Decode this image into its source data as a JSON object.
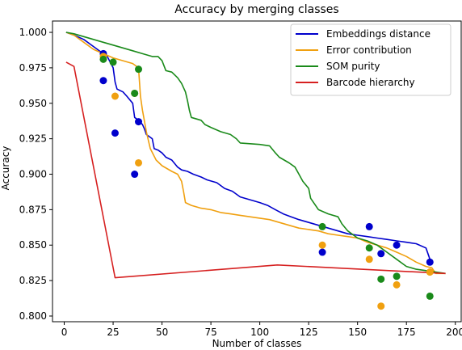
{
  "chart_data": {
    "type": "line",
    "title": "Accuracy by merging classes",
    "xlabel": "Number of classes",
    "ylabel": "Accuracy",
    "xlim": [
      -6,
      203
    ],
    "ylim": [
      0.796,
      1.008
    ],
    "xticks": [
      0,
      25,
      50,
      75,
      100,
      125,
      150,
      175,
      200
    ],
    "xtick_labels": [
      "0",
      "25",
      "50",
      "75",
      "100",
      "125",
      "150",
      "175",
      "200"
    ],
    "yticks": [
      0.8,
      0.825,
      0.85,
      0.875,
      0.9,
      0.925,
      0.95,
      0.975,
      1.0
    ],
    "ytick_labels": [
      "0.800",
      "0.825",
      "0.850",
      "0.875",
      "0.900",
      "0.925",
      "0.950",
      "0.975",
      "1.000"
    ],
    "grid": false,
    "legend_position": "top-right",
    "series": [
      {
        "name": "Embeddings distance",
        "color": "#0000cc",
        "points": [
          [
            1,
            1.0
          ],
          [
            5,
            0.998
          ],
          [
            10,
            0.995
          ],
          [
            15,
            0.99
          ],
          [
            20,
            0.985
          ],
          [
            22,
            0.983
          ],
          [
            25,
            0.975
          ],
          [
            26,
            0.965
          ],
          [
            27,
            0.96
          ],
          [
            30,
            0.958
          ],
          [
            32,
            0.955
          ],
          [
            35,
            0.95
          ],
          [
            36,
            0.94
          ],
          [
            38,
            0.938
          ],
          [
            40,
            0.935
          ],
          [
            41,
            0.932
          ],
          [
            42,
            0.928
          ],
          [
            45,
            0.925
          ],
          [
            46,
            0.918
          ],
          [
            48,
            0.917
          ],
          [
            50,
            0.915
          ],
          [
            52,
            0.912
          ],
          [
            55,
            0.91
          ],
          [
            58,
            0.905
          ],
          [
            60,
            0.903
          ],
          [
            63,
            0.902
          ],
          [
            66,
            0.9
          ],
          [
            70,
            0.898
          ],
          [
            73,
            0.896
          ],
          [
            78,
            0.894
          ],
          [
            82,
            0.89
          ],
          [
            86,
            0.888
          ],
          [
            90,
            0.884
          ],
          [
            95,
            0.882
          ],
          [
            100,
            0.88
          ],
          [
            104,
            0.878
          ],
          [
            108,
            0.875
          ],
          [
            112,
            0.872
          ],
          [
            116,
            0.87
          ],
          [
            120,
            0.868
          ],
          [
            125,
            0.866
          ],
          [
            130,
            0.864
          ],
          [
            135,
            0.862
          ],
          [
            140,
            0.86
          ],
          [
            145,
            0.858
          ],
          [
            150,
            0.857
          ],
          [
            155,
            0.856
          ],
          [
            160,
            0.855
          ],
          [
            165,
            0.854
          ],
          [
            170,
            0.853
          ],
          [
            175,
            0.852
          ],
          [
            180,
            0.851
          ],
          [
            185,
            0.848
          ],
          [
            187,
            0.84
          ]
        ]
      },
      {
        "name": "Error contribution",
        "color": "#f0a010",
        "points": [
          [
            1,
            1.0
          ],
          [
            5,
            0.998
          ],
          [
            10,
            0.993
          ],
          [
            15,
            0.988
          ],
          [
            20,
            0.985
          ],
          [
            25,
            0.982
          ],
          [
            30,
            0.98
          ],
          [
            35,
            0.978
          ],
          [
            38,
            0.975
          ],
          [
            39,
            0.955
          ],
          [
            40,
            0.945
          ],
          [
            42,
            0.93
          ],
          [
            44,
            0.918
          ],
          [
            47,
            0.91
          ],
          [
            50,
            0.906
          ],
          [
            55,
            0.902
          ],
          [
            58,
            0.9
          ],
          [
            60,
            0.895
          ],
          [
            61,
            0.888
          ],
          [
            62,
            0.88
          ],
          [
            65,
            0.878
          ],
          [
            70,
            0.876
          ],
          [
            75,
            0.875
          ],
          [
            80,
            0.873
          ],
          [
            85,
            0.872
          ],
          [
            90,
            0.871
          ],
          [
            95,
            0.87
          ],
          [
            100,
            0.869
          ],
          [
            105,
            0.868
          ],
          [
            110,
            0.866
          ],
          [
            115,
            0.864
          ],
          [
            120,
            0.862
          ],
          [
            125,
            0.861
          ],
          [
            130,
            0.86
          ],
          [
            135,
            0.858
          ],
          [
            140,
            0.857
          ],
          [
            145,
            0.856
          ],
          [
            150,
            0.855
          ],
          [
            155,
            0.852
          ],
          [
            160,
            0.85
          ],
          [
            165,
            0.848
          ],
          [
            170,
            0.845
          ],
          [
            175,
            0.842
          ],
          [
            180,
            0.838
          ],
          [
            185,
            0.835
          ],
          [
            188,
            0.834
          ],
          [
            190,
            0.83
          ],
          [
            195,
            0.83
          ]
        ]
      },
      {
        "name": "SOM purity",
        "color": "#1a8a1a",
        "points": [
          [
            1,
            1.0
          ],
          [
            5,
            0.999
          ],
          [
            10,
            0.997
          ],
          [
            15,
            0.995
          ],
          [
            20,
            0.993
          ],
          [
            25,
            0.991
          ],
          [
            30,
            0.989
          ],
          [
            35,
            0.987
          ],
          [
            40,
            0.985
          ],
          [
            45,
            0.983
          ],
          [
            48,
            0.983
          ],
          [
            50,
            0.98
          ],
          [
            52,
            0.973
          ],
          [
            55,
            0.972
          ],
          [
            58,
            0.968
          ],
          [
            60,
            0.964
          ],
          [
            62,
            0.958
          ],
          [
            63,
            0.952
          ],
          [
            64,
            0.945
          ],
          [
            65,
            0.94
          ],
          [
            70,
            0.938
          ],
          [
            72,
            0.935
          ],
          [
            75,
            0.933
          ],
          [
            80,
            0.93
          ],
          [
            85,
            0.928
          ],
          [
            88,
            0.925
          ],
          [
            90,
            0.922
          ],
          [
            100,
            0.921
          ],
          [
            105,
            0.92
          ],
          [
            108,
            0.915
          ],
          [
            110,
            0.912
          ],
          [
            115,
            0.908
          ],
          [
            118,
            0.905
          ],
          [
            120,
            0.9
          ],
          [
            122,
            0.895
          ],
          [
            125,
            0.89
          ],
          [
            126,
            0.883
          ],
          [
            130,
            0.875
          ],
          [
            135,
            0.872
          ],
          [
            140,
            0.87
          ],
          [
            142,
            0.865
          ],
          [
            145,
            0.86
          ],
          [
            150,
            0.855
          ],
          [
            155,
            0.853
          ],
          [
            160,
            0.85
          ],
          [
            165,
            0.845
          ],
          [
            170,
            0.84
          ],
          [
            175,
            0.835
          ],
          [
            180,
            0.833
          ],
          [
            185,
            0.832
          ],
          [
            190,
            0.831
          ],
          [
            195,
            0.83
          ]
        ]
      },
      {
        "name": "Barcode hierarchy",
        "color": "#d62020",
        "points": [
          [
            1,
            0.979
          ],
          [
            5,
            0.976
          ],
          [
            26,
            0.827
          ],
          [
            109,
            0.836
          ],
          [
            195,
            0.83
          ]
        ]
      }
    ],
    "scatter": [
      {
        "color": "#0000cc",
        "points": [
          [
            20,
            0.985
          ],
          [
            20,
            0.966
          ],
          [
            26,
            0.929
          ],
          [
            36,
            0.9
          ],
          [
            38,
            0.937
          ],
          [
            132,
            0.845
          ],
          [
            156,
            0.863
          ],
          [
            162,
            0.844
          ],
          [
            170,
            0.85
          ],
          [
            187,
            0.838
          ]
        ]
      },
      {
        "color": "#f0a010",
        "points": [
          [
            20,
            0.983
          ],
          [
            26,
            0.955
          ],
          [
            36,
            0.957
          ],
          [
            38,
            0.908
          ],
          [
            132,
            0.85
          ],
          [
            156,
            0.84
          ],
          [
            162,
            0.807
          ],
          [
            170,
            0.822
          ],
          [
            187,
            0.831
          ]
        ]
      },
      {
        "color": "#1a8a1a",
        "points": [
          [
            20,
            0.981
          ],
          [
            25,
            0.979
          ],
          [
            36,
            0.957
          ],
          [
            38,
            0.974
          ],
          [
            132,
            0.863
          ],
          [
            156,
            0.848
          ],
          [
            162,
            0.826
          ],
          [
            170,
            0.828
          ],
          [
            187,
            0.814
          ]
        ]
      }
    ]
  }
}
